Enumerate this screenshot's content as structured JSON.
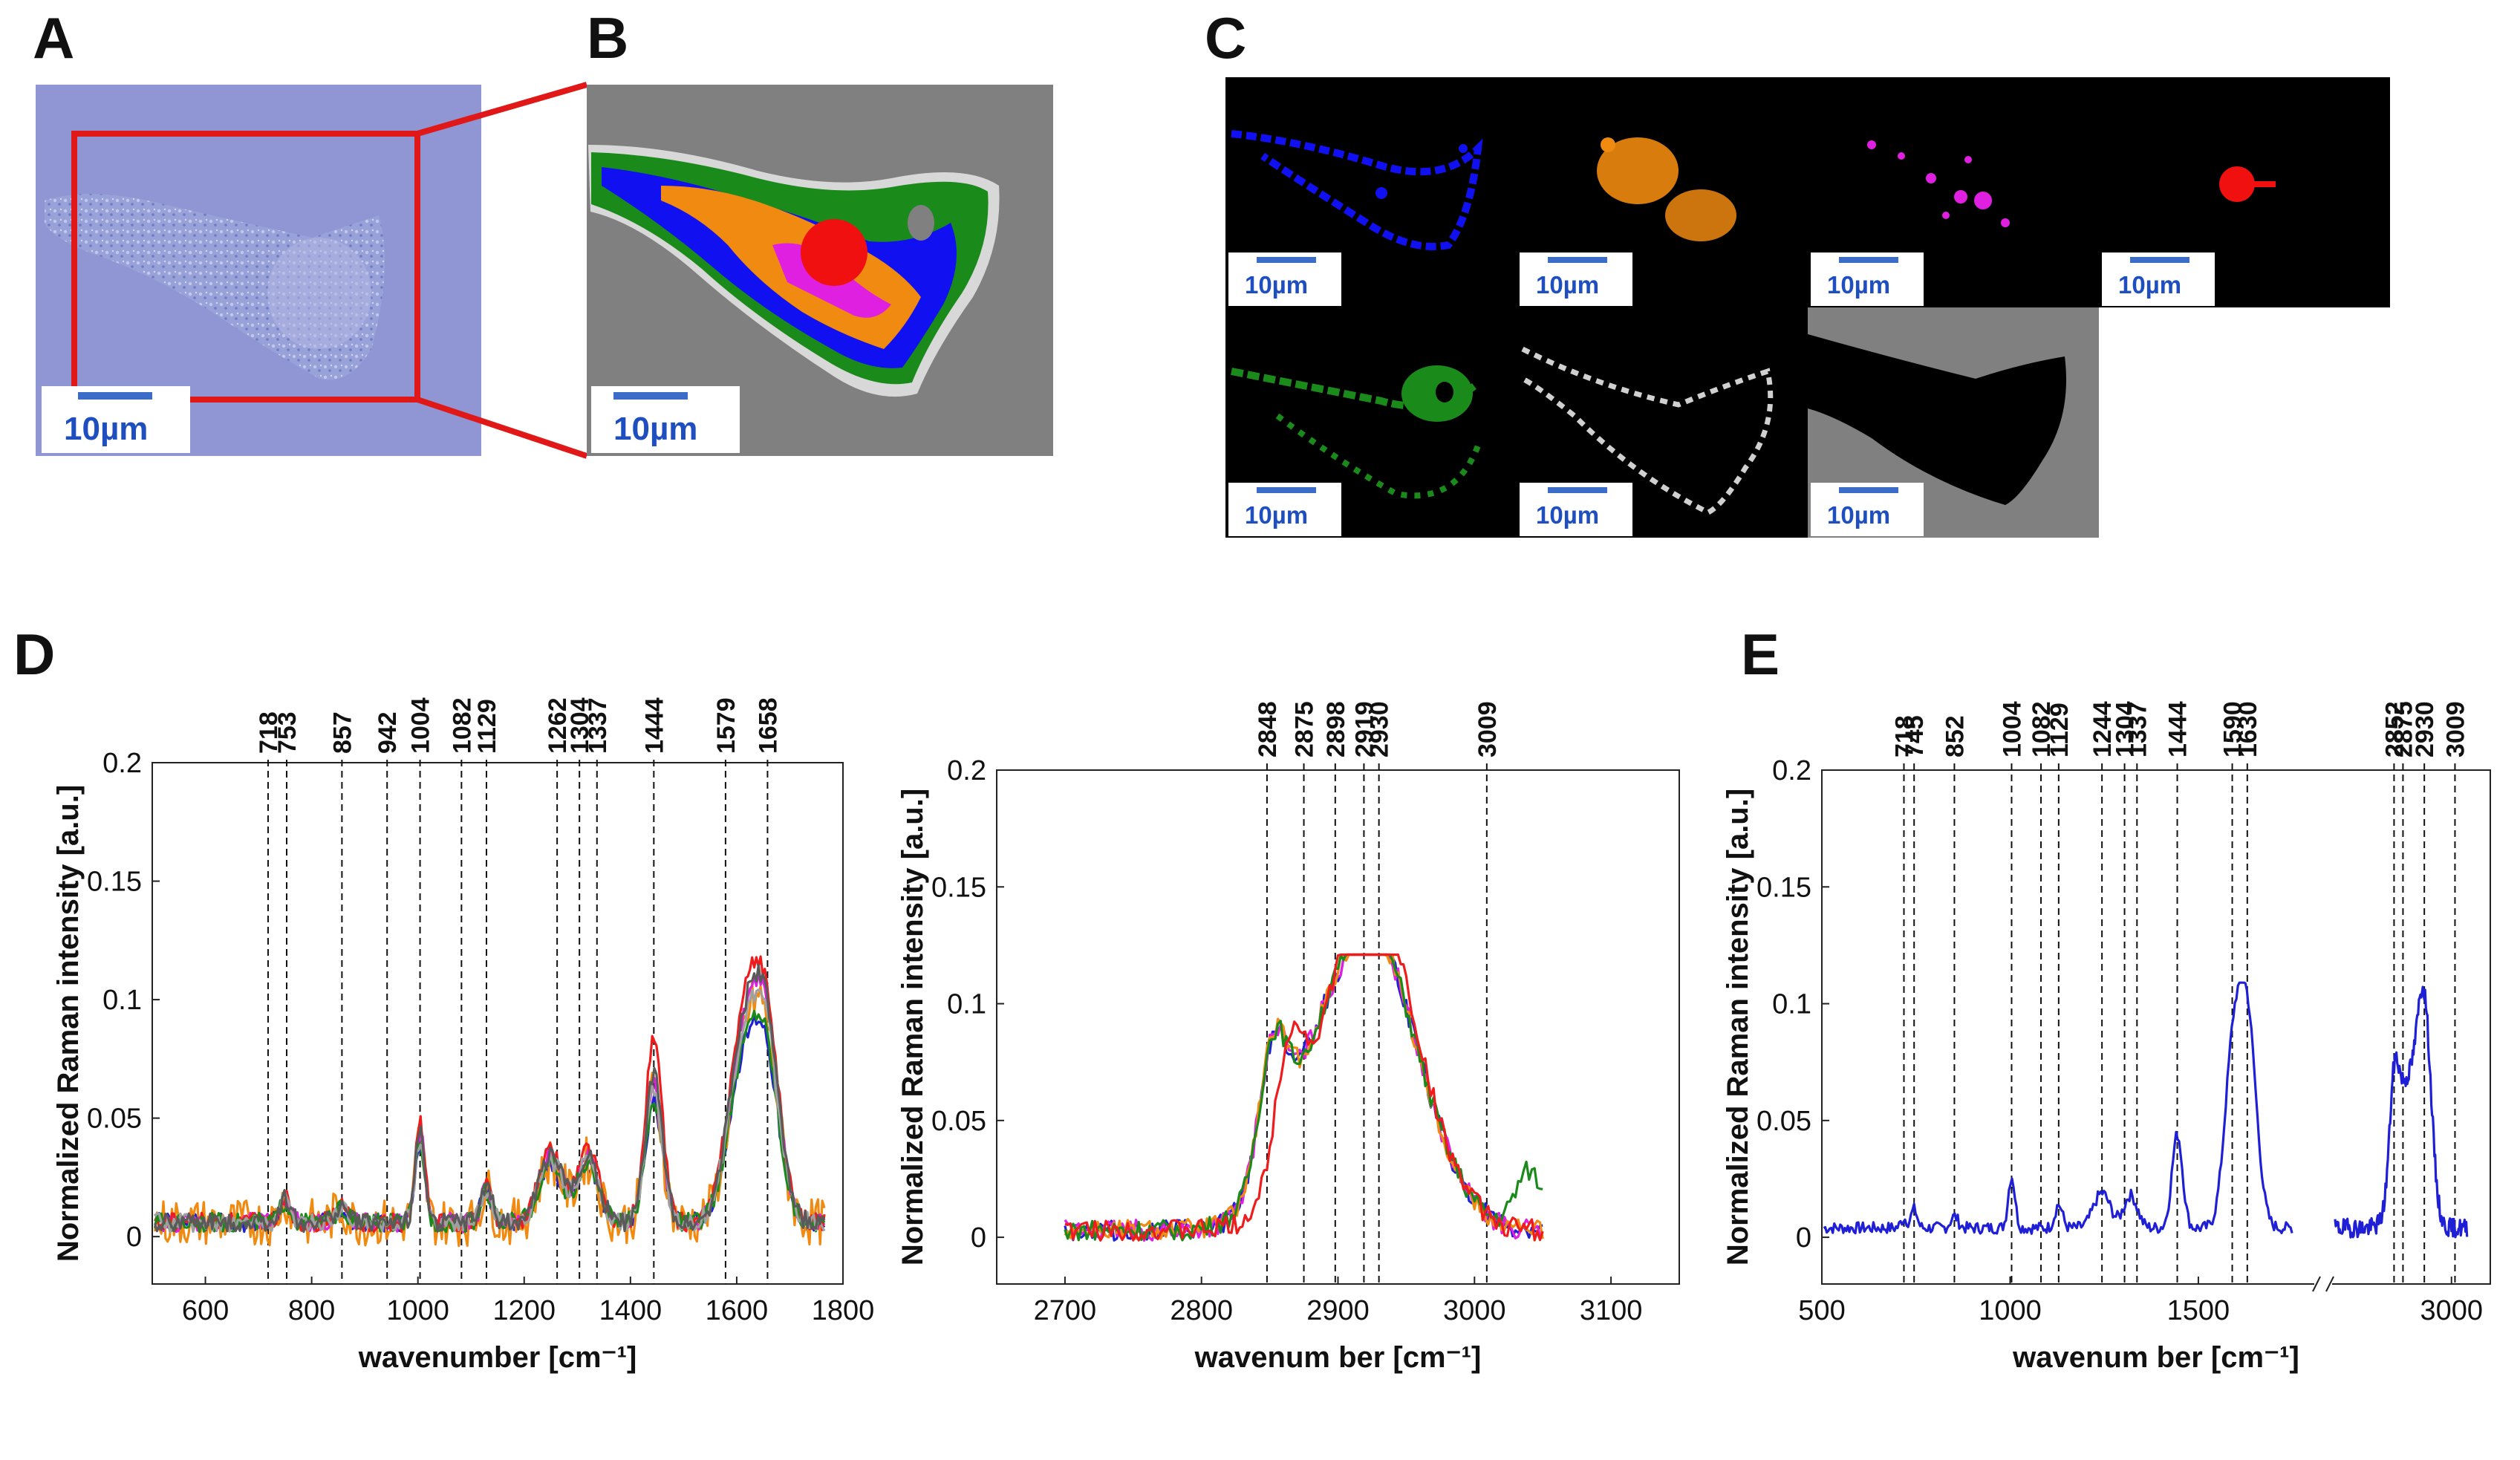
{
  "panels": {
    "A": {
      "label": "A",
      "scalebar": "10µm"
    },
    "B": {
      "label": "B",
      "scalebar": "10µm"
    },
    "C": {
      "label": "C",
      "tiles": [
        {
          "name": "blue",
          "color": "#1010f0",
          "scalebar": "10µm"
        },
        {
          "name": "orange",
          "color": "#f08a10",
          "scalebar": "10µm"
        },
        {
          "name": "magenta",
          "color": "#e020e0",
          "scalebar": "10µm"
        },
        {
          "name": "red",
          "color": "#f01010",
          "scalebar": "10µm"
        },
        {
          "name": "green",
          "color": "#1a8a1a",
          "scalebar": "10µm"
        },
        {
          "name": "gray",
          "color": "#d0d0d0",
          "scalebar": "10µm"
        },
        {
          "name": "background",
          "color": "#808080",
          "scalebar": "10µm"
        }
      ]
    },
    "D": {
      "label": "D"
    },
    "E": {
      "label": "E"
    }
  },
  "chart_data": [
    {
      "id": "D-left",
      "type": "line",
      "xlabel": "wavenumber [cm⁻¹]",
      "ylabel": "Normalized Raman intensity [a.u.]",
      "xlim": [
        500,
        1800
      ],
      "ylim": [
        -0.02,
        0.2
      ],
      "xticks": [
        "600",
        "800",
        "1000",
        "1200",
        "1400",
        "1600",
        "1800"
      ],
      "yticks": [
        "0",
        "0.05",
        "0.1",
        "0.15",
        "0.2"
      ],
      "peaks": [
        "718",
        "753",
        "857",
        "942",
        "1004",
        "1082",
        "1129",
        "1262",
        "1304",
        "1337",
        "1444",
        "1579",
        "1658"
      ],
      "series": [
        {
          "name": "blue",
          "color": "#1f1fd6"
        },
        {
          "name": "orange",
          "color": "#f08a10"
        },
        {
          "name": "magenta",
          "color": "#e020e0"
        },
        {
          "name": "red",
          "color": "#ee1c1c"
        },
        {
          "name": "green",
          "color": "#1a8a1a"
        },
        {
          "name": "gray",
          "color": "#a0a0a0"
        },
        {
          "name": "dark-gray",
          "color": "#5a5a5a"
        }
      ]
    },
    {
      "id": "D-right",
      "type": "line",
      "xlabel": "wavenum ber [cm⁻¹]",
      "ylabel": "Normalized Raman intensity [a.u.]",
      "xlim": [
        2650,
        3150
      ],
      "ylim": [
        -0.02,
        0.2
      ],
      "xticks": [
        "2700",
        "2800",
        "2900",
        "3000",
        "3100"
      ],
      "yticks": [
        "0",
        "0.05",
        "0.1",
        "0.15",
        "0.2"
      ],
      "peaks": [
        "2848",
        "2875",
        "2898",
        "2919",
        "2930",
        "3009"
      ],
      "series": [
        {
          "name": "blue",
          "color": "#1f1fd6"
        },
        {
          "name": "magenta",
          "color": "#e020e0"
        },
        {
          "name": "orange",
          "color": "#f08a10"
        },
        {
          "name": "green",
          "color": "#1a8a1a"
        },
        {
          "name": "red",
          "color": "#ee1c1c"
        }
      ]
    },
    {
      "id": "E",
      "type": "line",
      "xlabel": "wavenum ber [cm⁻¹]",
      "ylabel": "Normalized Raman intensity [a.u.]",
      "xlim_segment1": [
        500,
        1800
      ],
      "xlim_segment2": [
        2700,
        3100
      ],
      "ylim": [
        -0.02,
        0.2
      ],
      "xticks": [
        "500",
        "1000",
        "1500",
        "3000"
      ],
      "yticks": [
        "0",
        "0.05",
        "0.1",
        "0.15",
        "0.2"
      ],
      "peaks": [
        "718",
        "745",
        "852",
        "1004",
        "1082",
        "1129",
        "1244",
        "1304",
        "1337",
        "1444",
        "1590",
        "1630",
        "2852",
        "2875",
        "2930",
        "3009"
      ],
      "series": [
        {
          "name": "mean",
          "color": "#1f1fd6"
        }
      ]
    }
  ]
}
